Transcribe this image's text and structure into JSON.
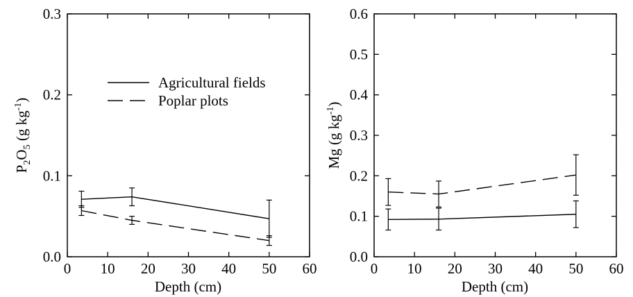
{
  "chart_data": [
    {
      "type": "line",
      "xlabel": "Depth (cm)",
      "ylabel": "P2O5 (g kg-1)",
      "xlim": [
        0,
        60
      ],
      "ylim": [
        0,
        0.3
      ],
      "xticks": [
        "0",
        "10",
        "20",
        "30",
        "40",
        "50",
        "60"
      ],
      "yticks": [
        "0.0",
        "0.1",
        "0.2",
        "0.3"
      ],
      "legend_placement": "upper-center",
      "series": [
        {
          "name": "Agricultural fields",
          "style": "solid",
          "x": [
            3.5,
            16,
            50
          ],
          "y": [
            0.071,
            0.074,
            0.047
          ],
          "err": [
            0.01,
            0.011,
            0.023
          ]
        },
        {
          "name": "Poplar plots",
          "style": "dashed",
          "x": [
            3.5,
            16,
            50
          ],
          "y": [
            0.057,
            0.045,
            0.02
          ],
          "err": [
            0.006,
            0.005,
            0.006
          ]
        }
      ]
    },
    {
      "type": "line",
      "xlabel": "Depth (cm)",
      "ylabel": "Mg (g kg-1)",
      "xlim": [
        0,
        60
      ],
      "ylim": [
        0,
        0.6
      ],
      "xticks": [
        "0",
        "10",
        "20",
        "30",
        "40",
        "50",
        "60"
      ],
      "yticks": [
        "0.0",
        "0.1",
        "0.2",
        "0.3",
        "0.4",
        "0.5",
        "0.6"
      ],
      "series": [
        {
          "style": "solid",
          "x": [
            3.5,
            16,
            50
          ],
          "y": [
            0.092,
            0.093,
            0.105
          ],
          "err": [
            0.026,
            0.027,
            0.033
          ]
        },
        {
          "style": "dashed",
          "x": [
            3.5,
            16,
            50
          ],
          "y": [
            0.16,
            0.155,
            0.202
          ],
          "err": [
            0.033,
            0.032,
            0.05
          ]
        }
      ]
    }
  ]
}
